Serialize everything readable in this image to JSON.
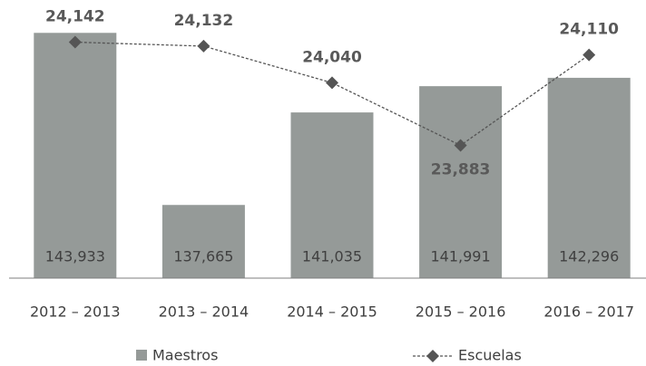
{
  "chart_data": {
    "type": "bar",
    "categories": [
      "2012 – 2013",
      "2013 – 2014",
      "2014 – 2015",
      "2015 – 2016",
      "2016 – 2017"
    ],
    "series": [
      {
        "name": "Maestros",
        "type": "bar",
        "color": "#959a98",
        "values": [
          143933,
          137665,
          141035,
          141991,
          142296
        ],
        "value_labels": [
          "143,933",
          "137,665",
          "141,035",
          "141,991",
          "142,296"
        ]
      },
      {
        "name": "Escuelas",
        "type": "line",
        "axis": "y2",
        "color": "#555555",
        "values": [
          24142,
          24132,
          24040,
          23883,
          24110
        ],
        "value_labels": [
          "24,142",
          "24,132",
          "24,040",
          "23,883",
          "24,110"
        ]
      }
    ],
    "ylim": [
      135000,
      144800
    ],
    "y2lim": [
      23550,
      24225
    ]
  }
}
